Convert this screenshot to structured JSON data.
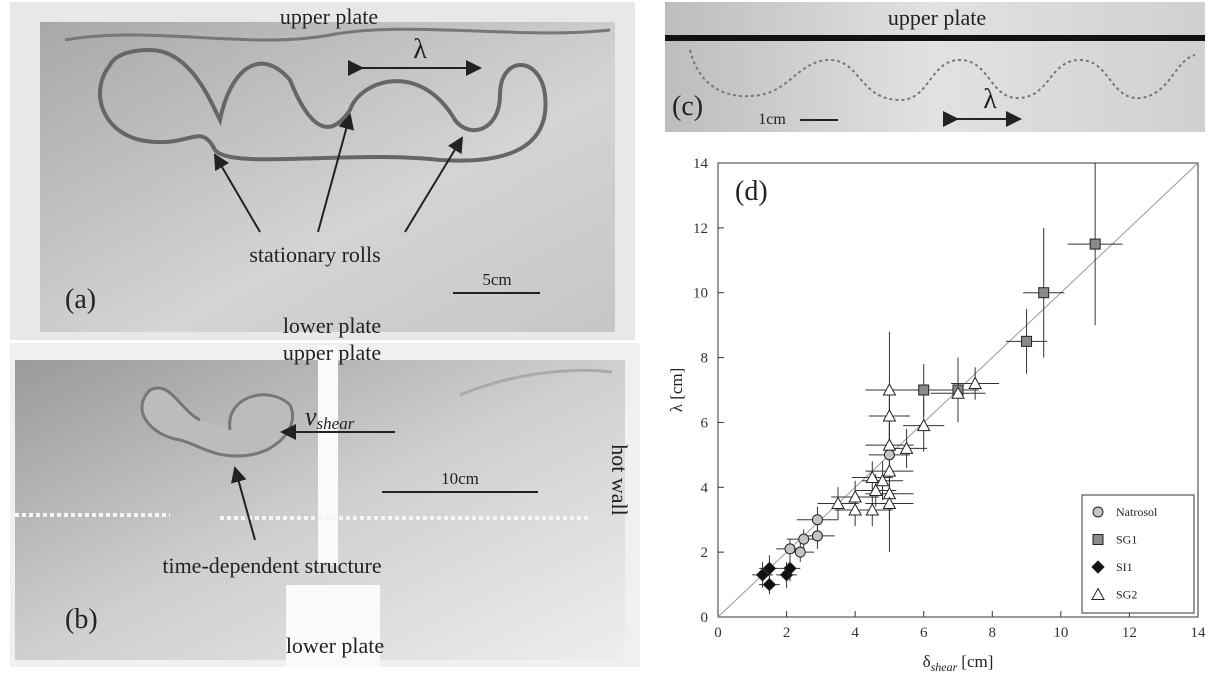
{
  "panels": {
    "a": {
      "label": "(a)",
      "top": "upper plate",
      "bottom": "lower plate",
      "wavelength": "λ",
      "annotation": "stationary rolls",
      "scale": "5cm"
    },
    "b": {
      "label": "(b)",
      "top": "upper plate",
      "bottom": "lower plate",
      "velocity": {
        "symbol": "v",
        "subscript": "shear"
      },
      "scale": "10cm",
      "wall": "hot wall",
      "annotation": "time-dependent structure"
    },
    "c": {
      "label": "(c)",
      "top": "upper plate",
      "scale": "1cm",
      "wavelength": "λ"
    }
  },
  "chart_data": {
    "type": "scatter",
    "panel_label": "(d)",
    "x_label": {
      "symbol": "δ",
      "subscript": "shear",
      "unit": "[cm]"
    },
    "y_label": "λ [cm]",
    "xlim": [
      0,
      14
    ],
    "ylim": [
      0,
      14
    ],
    "xticks": [
      0,
      2,
      4,
      6,
      8,
      10,
      12,
      14
    ],
    "yticks": [
      0,
      2,
      4,
      6,
      8,
      10,
      12,
      14
    ],
    "diagonal": true,
    "legend": "lower right",
    "series": [
      {
        "name": "Natrosol",
        "marker": "circle",
        "color": "#c4c4c4",
        "x": [
          2.1,
          2.4,
          2.5,
          2.9,
          2.9,
          5.0
        ],
        "values": [
          2.1,
          2.0,
          2.4,
          2.5,
          3.0,
          5.0
        ],
        "xerr": [
          0.4,
          0.4,
          0.5,
          0.5,
          0.6,
          0.6
        ],
        "yerr": [
          0.3,
          0.3,
          0.3,
          0.4,
          0.4,
          0.6
        ]
      },
      {
        "name": "SG1",
        "marker": "square",
        "color": "#8a8a8a",
        "x": [
          6,
          7,
          9,
          9.5,
          11
        ],
        "values": [
          7,
          7,
          8.5,
          10,
          11.5
        ],
        "xerr": [
          0.5,
          0.6,
          0.6,
          0.6,
          0.8
        ],
        "yerr": [
          0.8,
          1.0,
          1.0,
          2.0,
          2.5
        ]
      },
      {
        "name": "SI1",
        "marker": "diamond",
        "color": "#111111",
        "x": [
          1.3,
          1.5,
          1.5,
          2.0,
          2.1
        ],
        "values": [
          1.3,
          1.0,
          1.5,
          1.3,
          1.5
        ],
        "xerr": [
          0.3,
          0.3,
          0.3,
          0.3,
          0.3
        ],
        "yerr": [
          0.4,
          0.3,
          0.4,
          0.4,
          0.4
        ]
      },
      {
        "name": "SG2",
        "marker": "triangle",
        "color": "#ffffff",
        "x": [
          5,
          7,
          7.5,
          6,
          5,
          5.5,
          5,
          5,
          4.8,
          4.5,
          4.6,
          5,
          4,
          4,
          3.5,
          4.5,
          5
        ],
        "values": [
          7,
          6.9,
          7.2,
          5.9,
          6.2,
          5.2,
          5.3,
          4.5,
          4.2,
          4.3,
          3.9,
          3.8,
          3.7,
          3.3,
          3.5,
          3.3,
          3.5
        ],
        "xerr": [
          0.7,
          0.8,
          0.7,
          0.6,
          0.6,
          0.6,
          0.7,
          0.7,
          0.6,
          0.6,
          0.6,
          0.7,
          0.7,
          0.6,
          0.6,
          0.6,
          0.7
        ],
        "yerr": [
          1.8,
          0.6,
          0.5,
          0.8,
          0.6,
          0.6,
          0.6,
          2.5,
          0.6,
          0.5,
          0.5,
          0.5,
          0.5,
          0.5,
          0.5,
          0.5,
          0.5
        ]
      }
    ]
  }
}
